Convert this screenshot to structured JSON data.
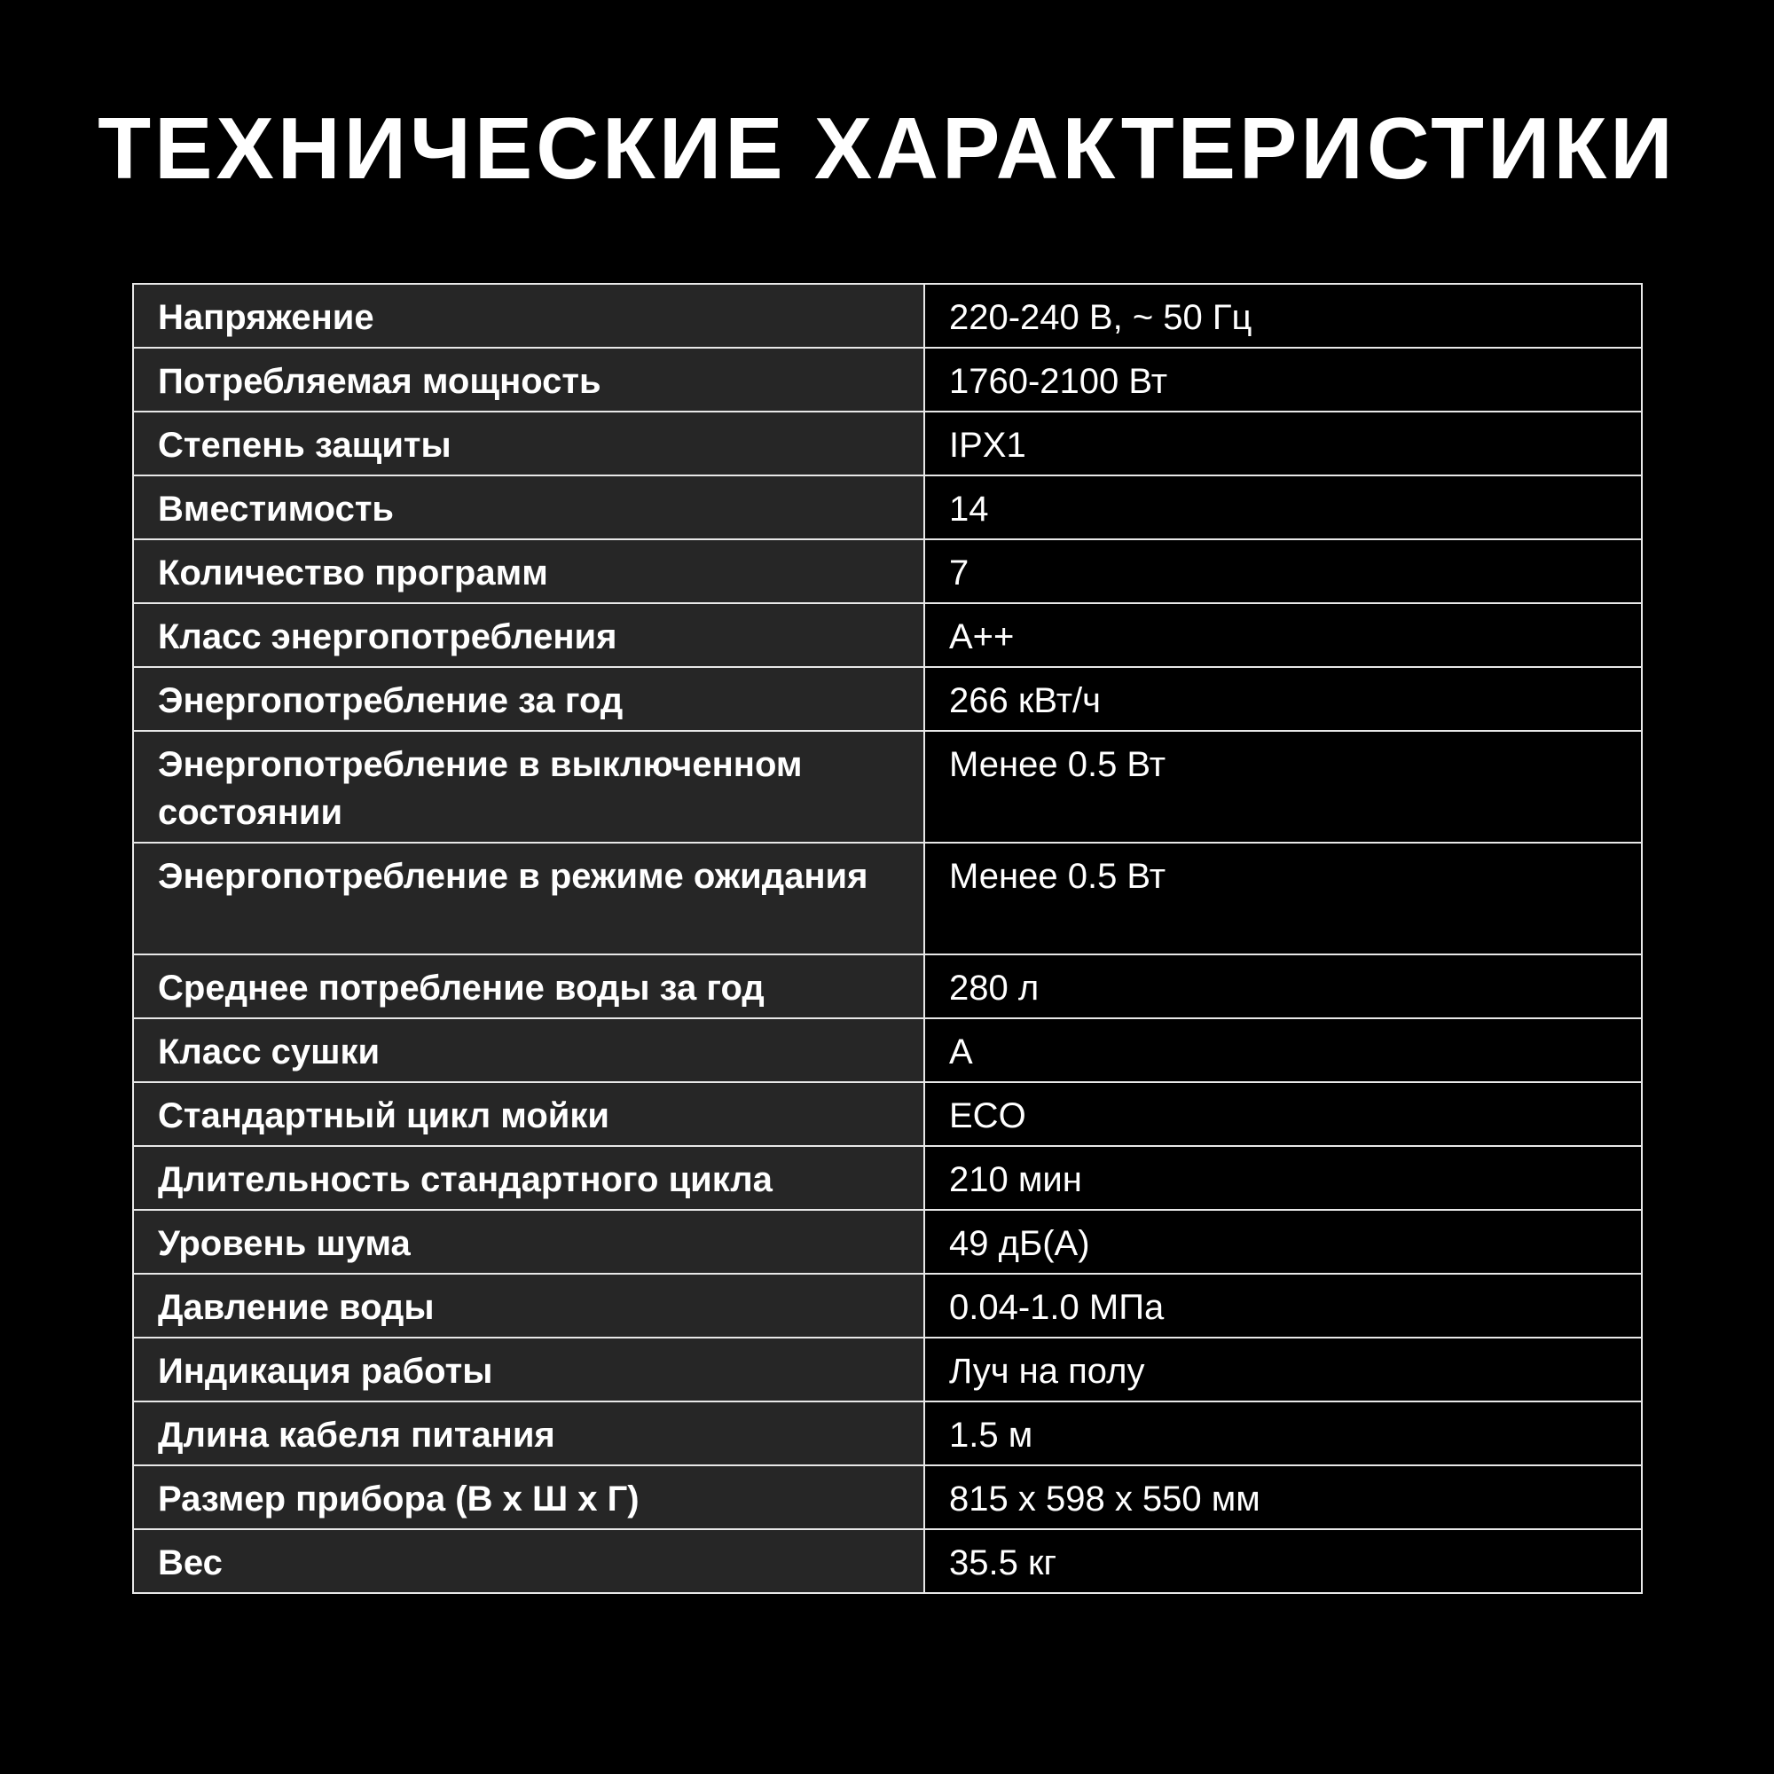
{
  "title": "ТЕХНИЧЕСКИЕ ХАРАКТЕРИСТИКИ",
  "specs": [
    {
      "label": "Напряжение",
      "value": "220-240 В, ~ 50 Гц"
    },
    {
      "label": "Потребляемая мощность",
      "value": "1760-2100 Вт"
    },
    {
      "label": "Степень защиты",
      "value": "IPX1"
    },
    {
      "label": "Вместимость",
      "value": "14"
    },
    {
      "label": "Количество программ",
      "value": "7"
    },
    {
      "label": "Класс энергопотребления",
      "value": "A++"
    },
    {
      "label": "Энергопотребление за год",
      "value": "266 кВт/ч"
    },
    {
      "label": "Энергопотребление в выключенном состоянии",
      "value": "Менее 0.5 Вт"
    },
    {
      "label": "Энергопотребление в режиме ожидания",
      "value": "Менее 0.5 Вт"
    },
    {
      "label": "Среднее потребление воды за год",
      "value": "280 л"
    },
    {
      "label": "Класс сушки",
      "value": "A"
    },
    {
      "label": "Стандартный цикл мойки",
      "value": "ECO"
    },
    {
      "label": "Длительность стандартного цикла",
      "value": "210 мин"
    },
    {
      "label": "Уровень шума",
      "value": "49 дБ(А)"
    },
    {
      "label": "Давление воды",
      "value": "0.04-1.0 МПа"
    },
    {
      "label": "Индикация работы",
      "value": "Луч на полу"
    },
    {
      "label": "Длина кабеля питания",
      "value": "1.5 м"
    },
    {
      "label": "Размер прибора (В х Ш х Г)",
      "value": "815 х 598 х 550 мм"
    },
    {
      "label": "Вес",
      "value": "35.5 кг"
    }
  ]
}
